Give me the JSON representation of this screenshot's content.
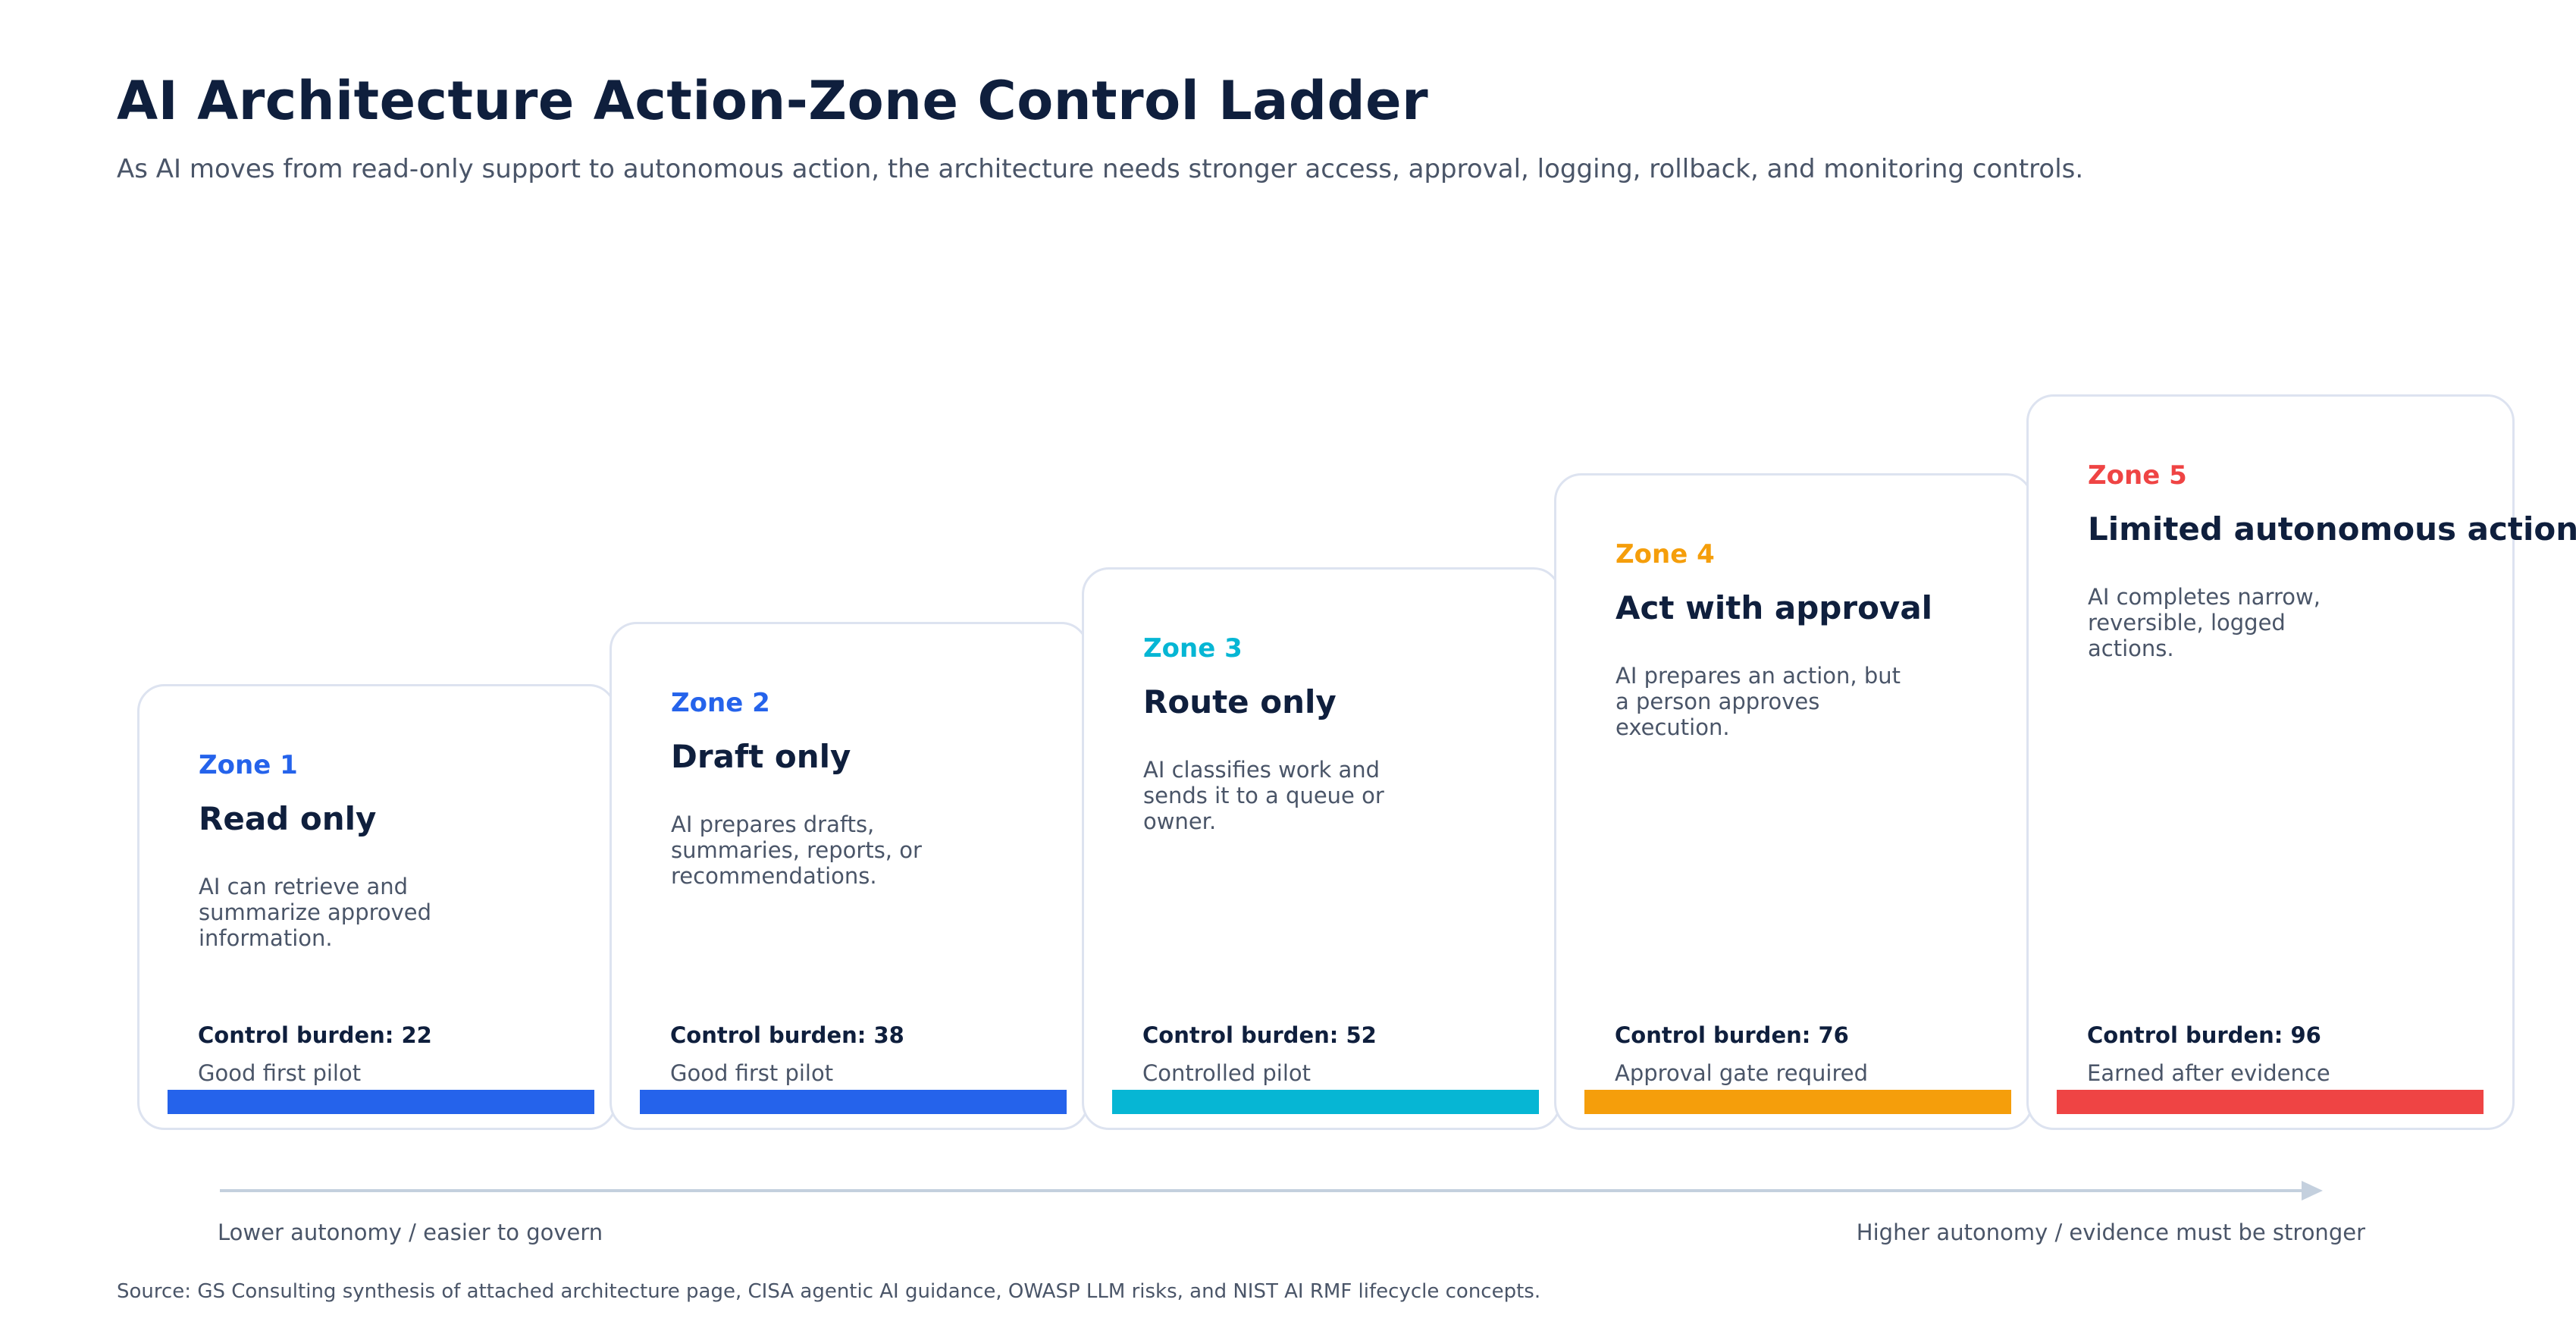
{
  "title": "AI Architecture Action-Zone Control Ladder",
  "subtitle": "As AI moves from read-only support to autonomous action, the architecture needs stronger access, approval, logging, rollback, and monitoring controls.",
  "zones": [
    {
      "zone": "Zone 1",
      "name": "Read only",
      "description": "AI can retrieve and summarize approved information.",
      "burden_label": "Control burden: 22",
      "control_burden": 22,
      "status": "Good first pilot",
      "color": "#2563eb"
    },
    {
      "zone": "Zone 2",
      "name": "Draft only",
      "description": "AI prepares drafts, summaries, reports, or recommendations.",
      "burden_label": "Control burden: 38",
      "control_burden": 38,
      "status": "Good first pilot",
      "color": "#2563eb"
    },
    {
      "zone": "Zone 3",
      "name": "Route only",
      "description": "AI classifies work and sends it to a queue or owner.",
      "burden_label": "Control burden: 52",
      "control_burden": 52,
      "status": "Controlled pilot",
      "color": "#06b6d4"
    },
    {
      "zone": "Zone 4",
      "name": "Act with approval",
      "description": "AI prepares an action, but a person approves execution.",
      "burden_label": "Control burden: 76",
      "control_burden": 76,
      "status": "Approval gate required",
      "color": "#f59e0b"
    },
    {
      "zone": "Zone 5",
      "name": "Limited autonomous action",
      "description": "AI completes narrow, reversible, logged actions.",
      "burden_label": "Control burden: 96",
      "control_burden": 96,
      "status": "Earned after evidence",
      "color": "#ef4444"
    }
  ],
  "axis": {
    "left_label": "Lower autonomy / easier to govern",
    "right_label": "Higher autonomy / evidence must be stronger"
  },
  "source": "Source: GS Consulting synthesis of attached architecture page, CISA agentic AI guidance, OWASP LLM risks, and NIST AI RMF lifecycle concepts."
}
